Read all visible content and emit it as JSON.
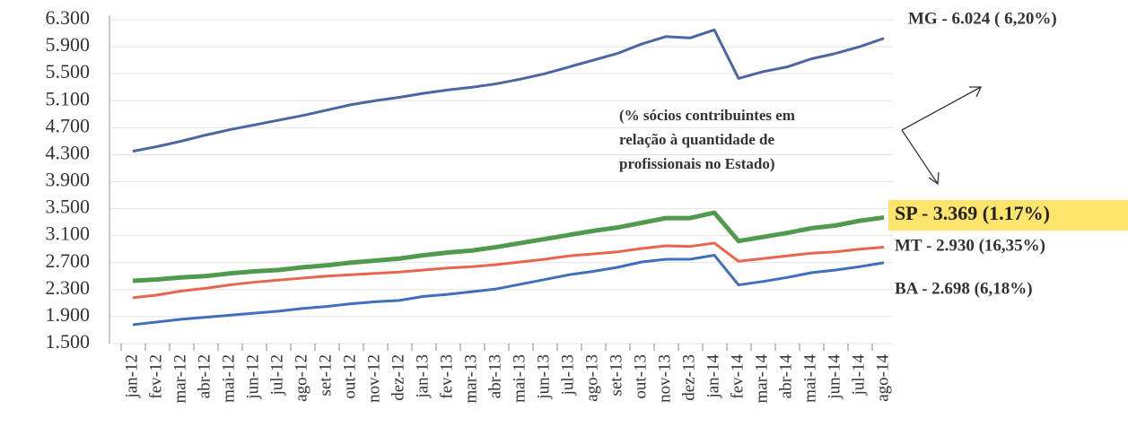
{
  "chart_data": {
    "type": "line",
    "annotation": [
      "(% sócios contribuintes em",
      "relação à quantidade de",
      "profissionais no Estado)"
    ],
    "categories": [
      "jan-12",
      "fev-12",
      "mar-12",
      "abr-12",
      "mai-12",
      "jun-12",
      "jul-12",
      "ago-12",
      "set-12",
      "out-12",
      "nov-12",
      "dez-12",
      "jan-13",
      "fev-13",
      "mar-13",
      "abr-13",
      "mai-13",
      "jun-13",
      "jul-13",
      "ago-13",
      "set-13",
      "out-13",
      "nov-13",
      "dez-13",
      "jan-14",
      "fev-14",
      "mar-14",
      "abr-14",
      "mai-14",
      "jun-14",
      "jul-14",
      "ago-14"
    ],
    "series": [
      {
        "name": "MG - 6.024 ( 6,20%)",
        "color": "#4a67a3",
        "values": [
          4350,
          4420,
          4500,
          4590,
          4670,
          4740,
          4810,
          4880,
          4960,
          5040,
          5100,
          5150,
          5210,
          5260,
          5300,
          5350,
          5420,
          5500,
          5600,
          5700,
          5800,
          5940,
          6050,
          6030,
          6150,
          5430,
          5530,
          5600,
          5720,
          5800,
          5900,
          6024
        ]
      },
      {
        "name": "SP - 3.369 (1.17%)",
        "color": "#4f9a4c",
        "highlight": "#fce56a",
        "values": [
          2430,
          2450,
          2480,
          2500,
          2540,
          2570,
          2590,
          2630,
          2660,
          2700,
          2730,
          2760,
          2810,
          2850,
          2880,
          2930,
          2990,
          3050,
          3110,
          3170,
          3220,
          3290,
          3360,
          3360,
          3440,
          3020,
          3080,
          3140,
          3210,
          3250,
          3320,
          3369
        ]
      },
      {
        "name": "MT - 2.930 (16,35%)",
        "color": "#e8654e",
        "values": [
          2180,
          2220,
          2280,
          2320,
          2370,
          2410,
          2440,
          2470,
          2500,
          2520,
          2540,
          2560,
          2590,
          2620,
          2640,
          2670,
          2710,
          2750,
          2800,
          2830,
          2860,
          2910,
          2950,
          2940,
          2990,
          2720,
          2760,
          2800,
          2840,
          2860,
          2900,
          2930
        ]
      },
      {
        "name": "BA - 2.698 (6,18%)",
        "color": "#3f6fbd",
        "values": [
          1780,
          1820,
          1860,
          1890,
          1920,
          1950,
          1980,
          2020,
          2050,
          2090,
          2120,
          2140,
          2200,
          2230,
          2270,
          2310,
          2380,
          2450,
          2520,
          2570,
          2630,
          2710,
          2750,
          2750,
          2810,
          2370,
          2420,
          2480,
          2550,
          2590,
          2640,
          2698
        ]
      }
    ],
    "ylim": [
      1500,
      6300
    ],
    "yticks": [
      {
        "value": 1500,
        "label": "1.500"
      },
      {
        "value": 1900,
        "label": "1.900"
      },
      {
        "value": 2300,
        "label": "2.300"
      },
      {
        "value": 2700,
        "label": "2.700"
      },
      {
        "value": 3100,
        "label": "3.100"
      },
      {
        "value": 3500,
        "label": "3.500"
      },
      {
        "value": 3900,
        "label": "3.900"
      },
      {
        "value": 4300,
        "label": "4.300"
      },
      {
        "value": 4700,
        "label": "4.700"
      },
      {
        "value": 5100,
        "label": "5.100"
      },
      {
        "value": 5500,
        "label": "5.500"
      },
      {
        "value": 5900,
        "label": "5.900"
      },
      {
        "value": 6300,
        "label": "6.300"
      }
    ],
    "grid": true
  }
}
